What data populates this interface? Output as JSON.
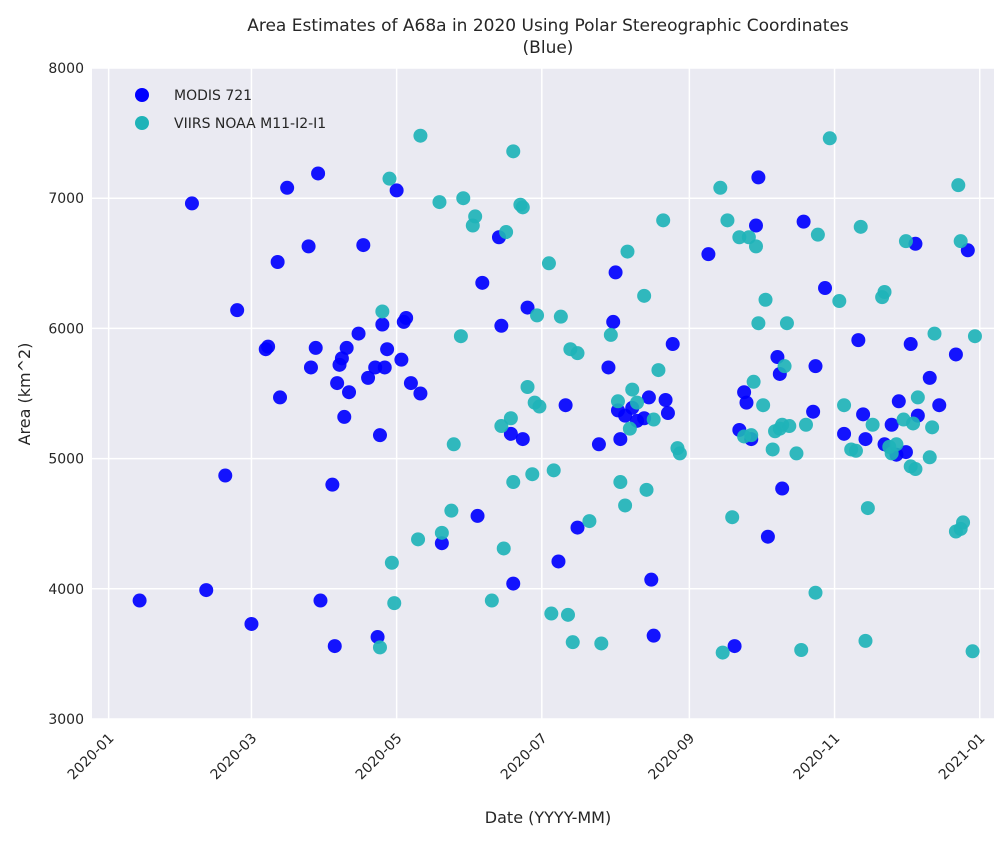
{
  "chart_data": {
    "type": "scatter",
    "title": "Area Estimates of A68a in 2020 Using Polar Stereographic Coordinates",
    "subtitle": "(Blue)",
    "xlabel": "Date (YYYY-MM)",
    "ylabel": "Area (km^2)",
    "xlim": [
      "2019-12-25",
      "2021-01-07"
    ],
    "ylim": [
      3000,
      8000
    ],
    "x_ticks": [
      "2020-01",
      "2020-03",
      "2020-05",
      "2020-07",
      "2020-09",
      "2020-11",
      "2021-01"
    ],
    "y_ticks": [
      3000,
      4000,
      5000,
      6000,
      7000,
      8000
    ],
    "grid": true,
    "legend_position": "upper-left",
    "background": "#eaeaf2",
    "series": [
      {
        "name": "MODIS 721",
        "color": "#0000ff",
        "points": [
          [
            "2020-01-14",
            3910
          ],
          [
            "2020-02-05",
            6960
          ],
          [
            "2020-02-11",
            3990
          ],
          [
            "2020-02-19",
            4870
          ],
          [
            "2020-02-24",
            6140
          ],
          [
            "2020-03-01",
            3730
          ],
          [
            "2020-03-07",
            5840
          ],
          [
            "2020-03-08",
            5860
          ],
          [
            "2020-03-12",
            6510
          ],
          [
            "2020-03-13",
            5470
          ],
          [
            "2020-03-16",
            7080
          ],
          [
            "2020-03-25",
            6630
          ],
          [
            "2020-03-26",
            5700
          ],
          [
            "2020-03-28",
            5850
          ],
          [
            "2020-03-29",
            7190
          ],
          [
            "2020-03-30",
            3910
          ],
          [
            "2020-04-04",
            4800
          ],
          [
            "2020-04-05",
            3560
          ],
          [
            "2020-04-06",
            5580
          ],
          [
            "2020-04-07",
            5720
          ],
          [
            "2020-04-08",
            5770
          ],
          [
            "2020-04-09",
            5320
          ],
          [
            "2020-04-10",
            5850
          ],
          [
            "2020-04-11",
            5510
          ],
          [
            "2020-04-15",
            5960
          ],
          [
            "2020-04-17",
            6640
          ],
          [
            "2020-04-19",
            5620
          ],
          [
            "2020-04-22",
            5700
          ],
          [
            "2020-04-23",
            3630
          ],
          [
            "2020-04-24",
            5180
          ],
          [
            "2020-04-25",
            6030
          ],
          [
            "2020-04-26",
            5700
          ],
          [
            "2020-04-27",
            5840
          ],
          [
            "2020-05-01",
            7060
          ],
          [
            "2020-05-03",
            5760
          ],
          [
            "2020-05-04",
            6050
          ],
          [
            "2020-05-05",
            6080
          ],
          [
            "2020-05-07",
            5580
          ],
          [
            "2020-05-11",
            5500
          ],
          [
            "2020-05-20",
            4350
          ],
          [
            "2020-06-04",
            4560
          ],
          [
            "2020-06-06",
            6350
          ],
          [
            "2020-06-13",
            6700
          ],
          [
            "2020-06-14",
            6020
          ],
          [
            "2020-06-18",
            5190
          ],
          [
            "2020-06-19",
            4040
          ],
          [
            "2020-06-23",
            5150
          ],
          [
            "2020-06-25",
            6160
          ],
          [
            "2020-07-08",
            4210
          ],
          [
            "2020-07-11",
            5410
          ],
          [
            "2020-07-16",
            4470
          ],
          [
            "2020-07-25",
            5110
          ],
          [
            "2020-07-29",
            5700
          ],
          [
            "2020-07-31",
            6050
          ],
          [
            "2020-08-01",
            6430
          ],
          [
            "2020-08-02",
            5370
          ],
          [
            "2020-08-03",
            5150
          ],
          [
            "2020-08-05",
            5330
          ],
          [
            "2020-08-08",
            5390
          ],
          [
            "2020-08-10",
            5290
          ],
          [
            "2020-08-13",
            5310
          ],
          [
            "2020-08-15",
            5470
          ],
          [
            "2020-08-16",
            4070
          ],
          [
            "2020-08-17",
            3640
          ],
          [
            "2020-08-22",
            5450
          ],
          [
            "2020-08-23",
            5350
          ],
          [
            "2020-08-25",
            5880
          ],
          [
            "2020-09-09",
            6570
          ],
          [
            "2020-09-20",
            3560
          ],
          [
            "2020-09-22",
            5220
          ],
          [
            "2020-09-24",
            5510
          ],
          [
            "2020-09-25",
            5430
          ],
          [
            "2020-09-27",
            5150
          ],
          [
            "2020-09-29",
            6790
          ],
          [
            "2020-09-30",
            7160
          ],
          [
            "2020-10-04",
            4400
          ],
          [
            "2020-10-08",
            5780
          ],
          [
            "2020-10-09",
            5650
          ],
          [
            "2020-10-10",
            4770
          ],
          [
            "2020-10-19",
            6820
          ],
          [
            "2020-10-23",
            5360
          ],
          [
            "2020-10-24",
            5710
          ],
          [
            "2020-10-28",
            6310
          ],
          [
            "2020-11-05",
            5190
          ],
          [
            "2020-11-11",
            5910
          ],
          [
            "2020-11-13",
            5340
          ],
          [
            "2020-11-14",
            5150
          ],
          [
            "2020-11-22",
            5110
          ],
          [
            "2020-11-25",
            5260
          ],
          [
            "2020-11-27",
            5030
          ],
          [
            "2020-11-28",
            5440
          ],
          [
            "2020-12-01",
            5050
          ],
          [
            "2020-12-03",
            5880
          ],
          [
            "2020-12-05",
            6650
          ],
          [
            "2020-12-06",
            5330
          ],
          [
            "2020-12-11",
            5620
          ],
          [
            "2020-12-15",
            5410
          ],
          [
            "2020-12-22",
            5800
          ],
          [
            "2020-12-27",
            6600
          ]
        ]
      },
      {
        "name": "VIIRS NOAA M11-I2-I1",
        "color": "#1fb3b8",
        "points": [
          [
            "2020-04-24",
            3550
          ],
          [
            "2020-04-25",
            6130
          ],
          [
            "2020-04-28",
            7150
          ],
          [
            "2020-04-29",
            4200
          ],
          [
            "2020-04-30",
            3890
          ],
          [
            "2020-05-10",
            4380
          ],
          [
            "2020-05-11",
            7480
          ],
          [
            "2020-05-19",
            6970
          ],
          [
            "2020-05-20",
            4430
          ],
          [
            "2020-05-24",
            4600
          ],
          [
            "2020-05-25",
            5110
          ],
          [
            "2020-05-28",
            5940
          ],
          [
            "2020-05-29",
            7000
          ],
          [
            "2020-06-02",
            6790
          ],
          [
            "2020-06-03",
            6860
          ],
          [
            "2020-06-10",
            3910
          ],
          [
            "2020-06-14",
            5250
          ],
          [
            "2020-06-15",
            4310
          ],
          [
            "2020-06-16",
            6740
          ],
          [
            "2020-06-18",
            5310
          ],
          [
            "2020-06-19",
            4820
          ],
          [
            "2020-06-19",
            7360
          ],
          [
            "2020-06-22",
            6950
          ],
          [
            "2020-06-23",
            6930
          ],
          [
            "2020-06-25",
            5550
          ],
          [
            "2020-06-27",
            4880
          ],
          [
            "2020-06-28",
            5430
          ],
          [
            "2020-06-29",
            6100
          ],
          [
            "2020-06-30",
            5400
          ],
          [
            "2020-07-04",
            6500
          ],
          [
            "2020-07-05",
            3810
          ],
          [
            "2020-07-06",
            4910
          ],
          [
            "2020-07-09",
            6090
          ],
          [
            "2020-07-12",
            3800
          ],
          [
            "2020-07-13",
            5840
          ],
          [
            "2020-07-14",
            3590
          ],
          [
            "2020-07-16",
            5810
          ],
          [
            "2020-07-21",
            4520
          ],
          [
            "2020-07-26",
            3580
          ],
          [
            "2020-07-30",
            5950
          ],
          [
            "2020-08-02",
            5440
          ],
          [
            "2020-08-03",
            4820
          ],
          [
            "2020-08-05",
            4640
          ],
          [
            "2020-08-06",
            6590
          ],
          [
            "2020-08-07",
            5230
          ],
          [
            "2020-08-08",
            5530
          ],
          [
            "2020-08-10",
            5430
          ],
          [
            "2020-08-13",
            6250
          ],
          [
            "2020-08-14",
            4760
          ],
          [
            "2020-08-17",
            5300
          ],
          [
            "2020-08-19",
            5680
          ],
          [
            "2020-08-21",
            6830
          ],
          [
            "2020-08-27",
            5080
          ],
          [
            "2020-08-28",
            5040
          ],
          [
            "2020-09-14",
            7080
          ],
          [
            "2020-09-15",
            3510
          ],
          [
            "2020-09-17",
            6830
          ],
          [
            "2020-09-19",
            4550
          ],
          [
            "2020-09-22",
            6700
          ],
          [
            "2020-09-24",
            5170
          ],
          [
            "2020-09-26",
            6700
          ],
          [
            "2020-09-27",
            5180
          ],
          [
            "2020-09-28",
            5590
          ],
          [
            "2020-09-29",
            6630
          ],
          [
            "2020-09-30",
            6040
          ],
          [
            "2020-10-02",
            5410
          ],
          [
            "2020-10-03",
            6220
          ],
          [
            "2020-10-06",
            5070
          ],
          [
            "2020-10-07",
            5210
          ],
          [
            "2020-10-09",
            5230
          ],
          [
            "2020-10-10",
            5260
          ],
          [
            "2020-10-11",
            5710
          ],
          [
            "2020-10-12",
            6040
          ],
          [
            "2020-10-13",
            5250
          ],
          [
            "2020-10-16",
            5040
          ],
          [
            "2020-10-18",
            3530
          ],
          [
            "2020-10-20",
            5260
          ],
          [
            "2020-10-24",
            3970
          ],
          [
            "2020-10-25",
            6720
          ],
          [
            "2020-10-30",
            7460
          ],
          [
            "2020-11-03",
            6210
          ],
          [
            "2020-11-05",
            5410
          ],
          [
            "2020-11-08",
            5070
          ],
          [
            "2020-11-10",
            5060
          ],
          [
            "2020-11-12",
            6780
          ],
          [
            "2020-11-14",
            3600
          ],
          [
            "2020-11-15",
            4620
          ],
          [
            "2020-11-17",
            5260
          ],
          [
            "2020-11-21",
            6240
          ],
          [
            "2020-11-22",
            6280
          ],
          [
            "2020-11-24",
            5090
          ],
          [
            "2020-11-25",
            5040
          ],
          [
            "2020-11-27",
            5110
          ],
          [
            "2020-11-30",
            5300
          ],
          [
            "2020-12-01",
            6670
          ],
          [
            "2020-12-03",
            4940
          ],
          [
            "2020-12-04",
            5270
          ],
          [
            "2020-12-05",
            4920
          ],
          [
            "2020-12-06",
            5470
          ],
          [
            "2020-12-11",
            5010
          ],
          [
            "2020-12-12",
            5240
          ],
          [
            "2020-12-13",
            5960
          ],
          [
            "2020-12-22",
            4440
          ],
          [
            "2020-12-23",
            7100
          ],
          [
            "2020-12-24",
            6670
          ],
          [
            "2020-12-24",
            4460
          ],
          [
            "2020-12-25",
            4510
          ],
          [
            "2020-12-29",
            3520
          ],
          [
            "2020-12-30",
            5940
          ]
        ]
      }
    ]
  }
}
